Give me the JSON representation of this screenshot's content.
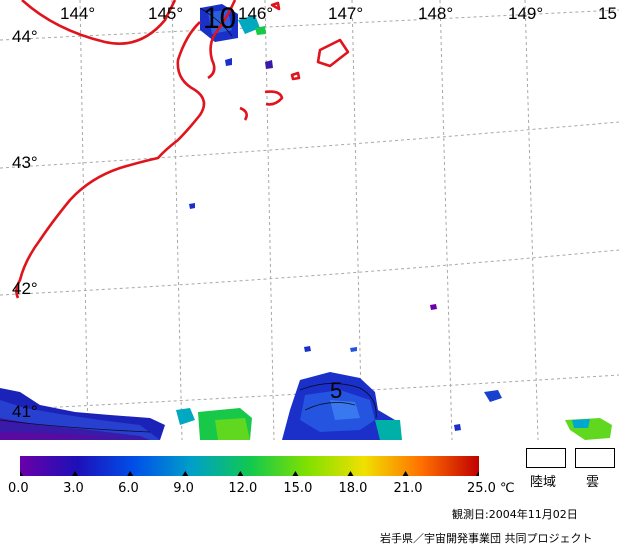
{
  "longitude_labels": [
    "144°",
    "145°",
    "146°",
    "147°",
    "148°",
    "149°",
    "15"
  ],
  "latitude_labels": [
    "44°",
    "43°",
    "42°",
    "41°"
  ],
  "contour_label": "10",
  "contour_label_small": "5",
  "legend": {
    "ticks": [
      "0.0",
      "3.0",
      "6.0",
      "9.0",
      "12.0",
      "15.0",
      "18.0",
      "21.0",
      "25.0"
    ],
    "unit": "℃",
    "colors": [
      "#6a00a8",
      "#1d10b8",
      "#0050e8",
      "#00a0c8",
      "#10c850",
      "#80e000",
      "#f0e000",
      "#ff7000",
      "#c00000"
    ]
  },
  "boxes": {
    "land": "陸域",
    "cloud": "雲"
  },
  "observation_date": "観測日:2004年11月02日",
  "credit": "岩手県／宇宙開発事業団 共同プロジェクト"
}
